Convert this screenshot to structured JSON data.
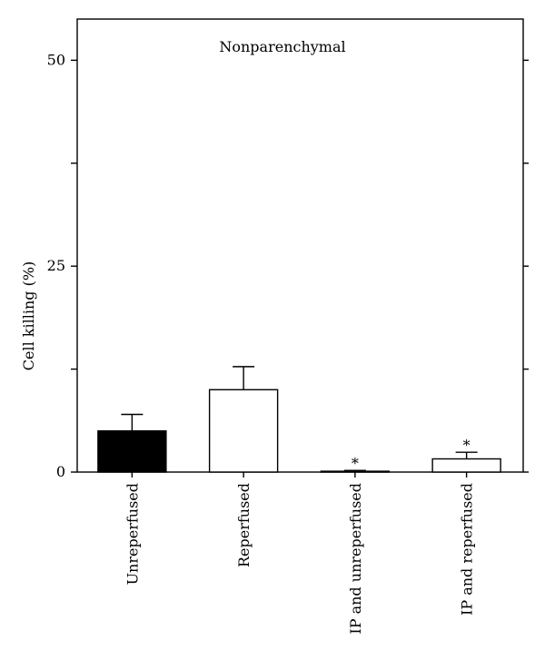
{
  "chart_data": {
    "type": "bar",
    "title": "Nonparenchymal",
    "xlabel": "",
    "ylabel": "Cell killing (%)",
    "ylim": [
      0,
      55
    ],
    "yticks": [
      0,
      12.5,
      25,
      37.5,
      50
    ],
    "ytick_labels": [
      "0",
      "",
      "25",
      "",
      "50"
    ],
    "grid": false,
    "categories": [
      "Unreperfused",
      "Reperfused",
      "IP and unreperfused",
      "IP and reperfused"
    ],
    "series": [
      {
        "values": [
          5.0,
          10.0,
          0.1,
          1.6
        ],
        "errors": [
          2.0,
          2.8,
          0.1,
          0.8
        ],
        "fills": [
          "#000000",
          "#ffffff",
          "#ffffff",
          "#ffffff"
        ],
        "annotations": [
          "",
          "",
          "*",
          "*"
        ]
      }
    ]
  }
}
